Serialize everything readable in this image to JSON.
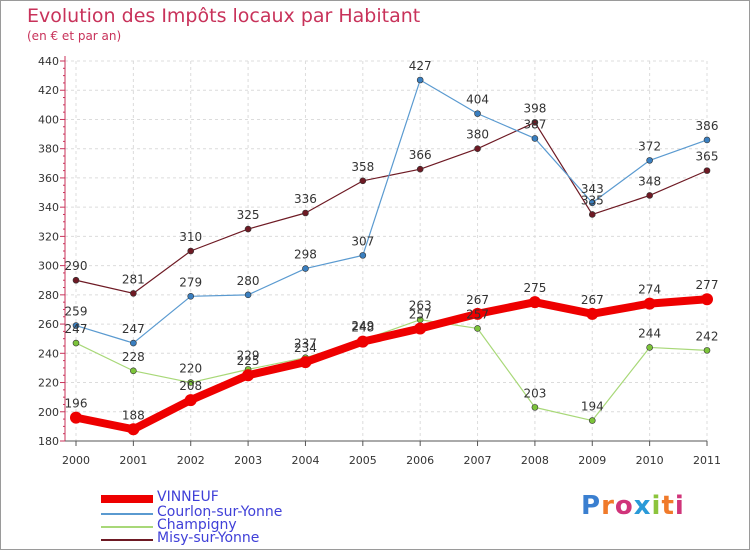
{
  "title": "Evolution des Impôts locaux par Habitant",
  "subtitle": "(en € et par an)",
  "logo": {
    "text": "Proxiti",
    "colors": [
      "#3a7fd0",
      "#f07a2a",
      "#d0347a",
      "#2a9ad8",
      "#8cc43c",
      "#f07a2a",
      "#d0347a"
    ]
  },
  "chart_data": {
    "type": "line",
    "title": "Evolution des Impôts locaux par Habitant",
    "subtitle": "(en € et par an)",
    "xlabel": "",
    "ylabel": "",
    "categories": [
      "2000",
      "2001",
      "2002",
      "2003",
      "2004",
      "2005",
      "2006",
      "2007",
      "2008",
      "2009",
      "2010",
      "2011"
    ],
    "ylim": [
      180,
      440
    ],
    "yticks": [
      180,
      200,
      220,
      240,
      260,
      280,
      300,
      320,
      340,
      360,
      380,
      400,
      420,
      440
    ],
    "grid": true,
    "legend_position": "bottom-left",
    "series": [
      {
        "name": "Misy-sur-Yonne",
        "color": "#6e1a24",
        "marker": "#6e1a24",
        "width": 1.2,
        "radius": 3,
        "values": [
          290,
          281,
          310,
          325,
          336,
          358,
          366,
          380,
          398,
          335,
          348,
          365
        ]
      },
      {
        "name": "Courlon-sur-Yonne",
        "color": "#5a9ad0",
        "marker": "#3a7fc0",
        "width": 1.2,
        "radius": 3,
        "values": [
          259,
          247,
          279,
          280,
          298,
          307,
          427,
          404,
          387,
          343,
          372,
          386
        ]
      },
      {
        "name": "Champigny",
        "color": "#a8d878",
        "marker": "#7cc43a",
        "width": 1.2,
        "radius": 3,
        "values": [
          247,
          228,
          220,
          229,
          237,
          249,
          263,
          257,
          203,
          194,
          244,
          242
        ]
      },
      {
        "name": "VINNEUF",
        "color": "#ee0000",
        "marker": "#ee0000",
        "width": 8,
        "radius": 6,
        "values": [
          196,
          188,
          208,
          225,
          234,
          248,
          257,
          267,
          275,
          267,
          274,
          277
        ]
      }
    ],
    "legend": [
      "VINNEUF",
      "Courlon-sur-Yonne",
      "Champigny",
      "Misy-sur-Yonne"
    ]
  }
}
